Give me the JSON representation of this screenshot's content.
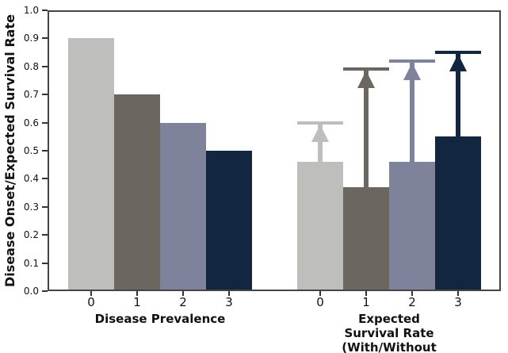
{
  "figure": {
    "background": "#ffffff",
    "spine_color": "#454545",
    "tick_color": "#333333",
    "text_color": "#111111"
  },
  "chart_data": {
    "type": "bar",
    "title": "",
    "ylabel": "Disease Onset/Expected Survival Rate",
    "ylim": [
      0.0,
      1.0
    ],
    "yticks": [
      "0.0",
      "0.1",
      "0.2",
      "0.3",
      "0.4",
      "0.5",
      "0.6",
      "0.7",
      "0.8",
      "0.9",
      "1.0"
    ],
    "grid": false,
    "legend_position": "none",
    "bar_colors": [
      "#bebfbc",
      "#6b665f",
      "#7f829b",
      "#132640"
    ],
    "groups": [
      {
        "xlabel": "Disease Prevalence",
        "categories": [
          "0",
          "1",
          "2",
          "3"
        ],
        "values": [
          0.9,
          0.7,
          0.6,
          0.5
        ]
      },
      {
        "xlabel": "Expected Survival Rate\n(With/Without Alerts)",
        "categories": [
          "0",
          "1",
          "2",
          "3"
        ],
        "values": [
          0.46,
          0.37,
          0.46,
          0.55
        ],
        "arrow_tops": [
          0.6,
          0.79,
          0.82,
          0.85
        ]
      }
    ]
  }
}
